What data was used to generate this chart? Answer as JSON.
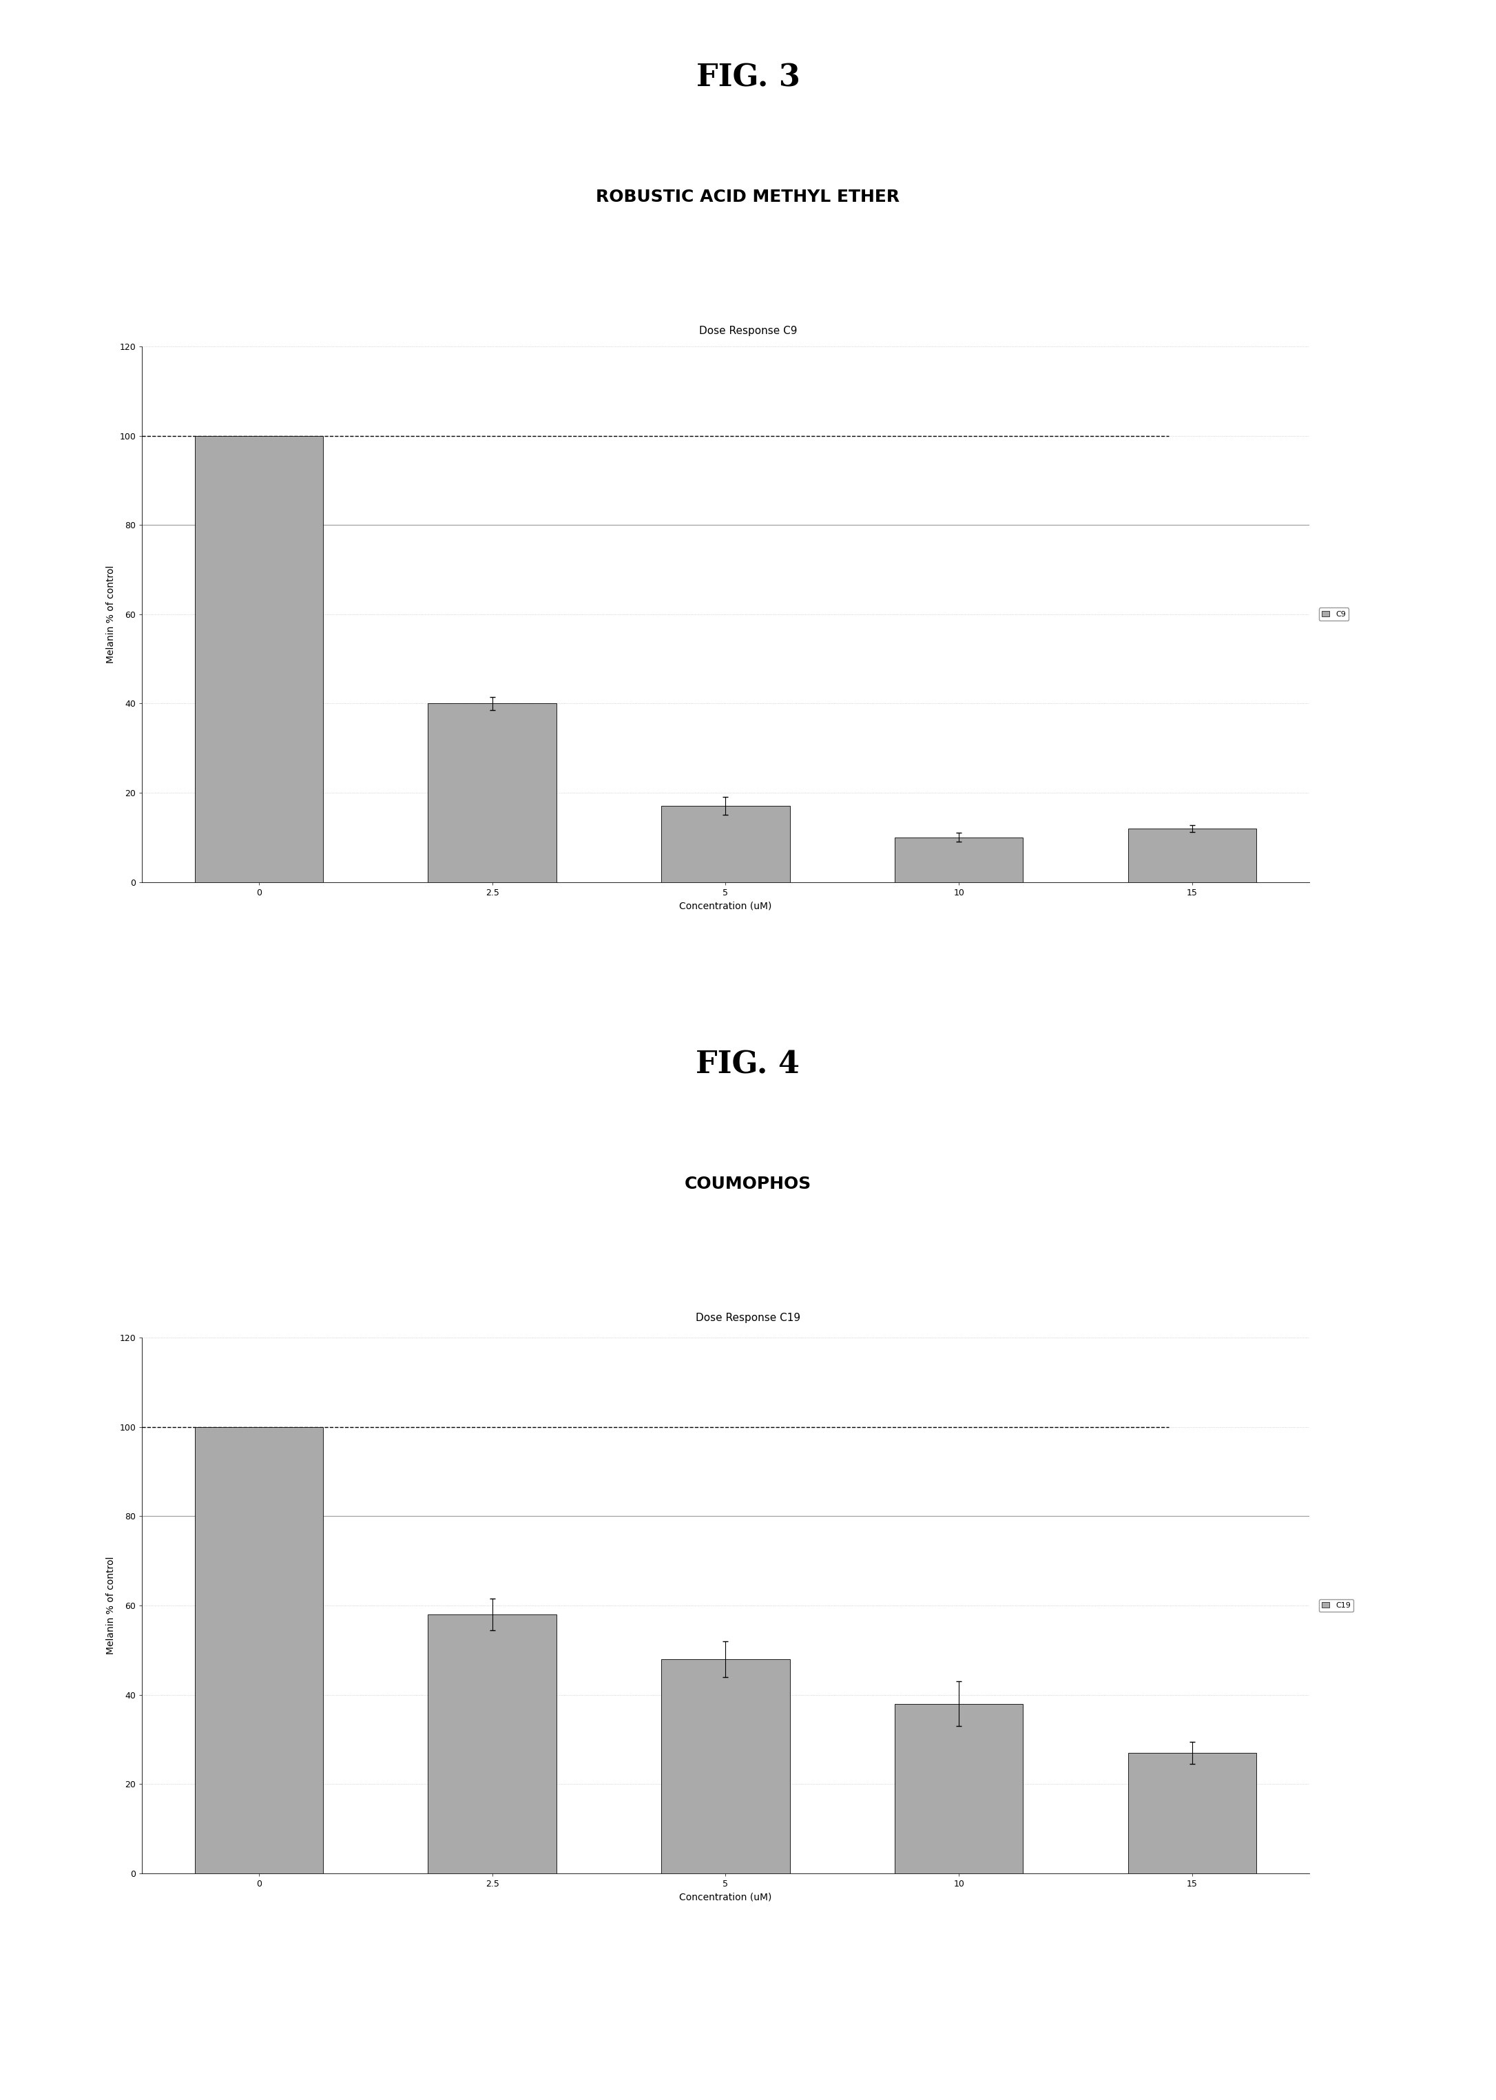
{
  "fig3_title": "FIG. 3",
  "fig3_subtitle": "ROBUSTIC ACID METHYL ETHER",
  "fig3_chart_title": "Dose Response C9",
  "fig3_categories": [
    0,
    2.5,
    5,
    10,
    15
  ],
  "fig3_values": [
    100,
    40,
    17,
    10,
    12
  ],
  "fig3_errors": [
    0,
    1.5,
    2.0,
    1.0,
    0.8
  ],
  "fig3_legend": "C9",
  "fig3_ylabel": "Melanin % of control",
  "fig3_xlabel": "Concentration (uM)",
  "fig3_ylim": [
    0,
    120
  ],
  "fig3_yticks": [
    0,
    20,
    40,
    60,
    80,
    100,
    120
  ],
  "fig4_title": "FIG. 4",
  "fig4_subtitle": "COUMOPHOS",
  "fig4_chart_title": "Dose Response C19",
  "fig4_categories": [
    0,
    2.5,
    5,
    10,
    15
  ],
  "fig4_values": [
    100,
    58,
    48,
    38,
    27
  ],
  "fig4_errors": [
    0,
    3.5,
    4.0,
    5.0,
    2.5
  ],
  "fig4_legend": "C19",
  "fig4_ylabel": "Melanin % of control",
  "fig4_xlabel": "Concentration (uM)",
  "fig4_ylim": [
    0,
    120
  ],
  "fig4_yticks": [
    0,
    20,
    40,
    60,
    80,
    100,
    120
  ],
  "bar_color": "#aaaaaa",
  "bar_edgecolor": "#000000",
  "bar_width": 0.55,
  "background_color": "#ffffff",
  "grid_color_dotted": "#bbbbbb",
  "grid_color_solid": "#999999",
  "fig_title_fontsize": 32,
  "subtitle_fontsize": 18,
  "chart_title_fontsize": 11,
  "axis_label_fontsize": 10,
  "tick_fontsize": 9,
  "legend_fontsize": 8
}
